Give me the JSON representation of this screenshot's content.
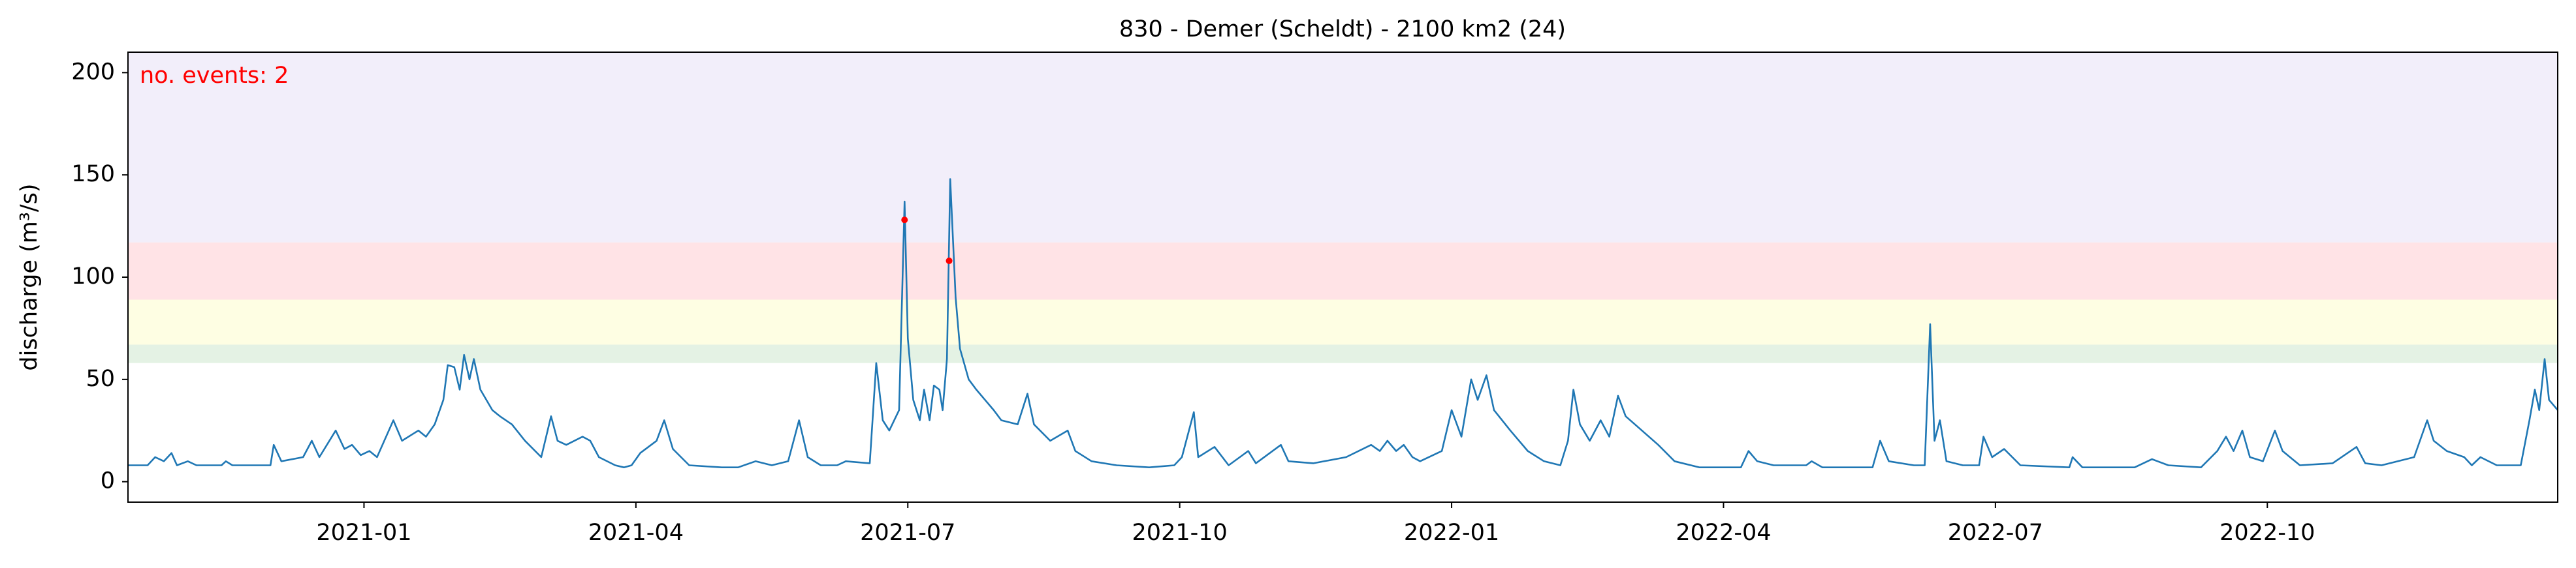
{
  "chart_data": {
    "type": "line",
    "title": "830 - Demer (Scheldt) - 2100 km2 (24)",
    "ylabel": "discharge (m³/s)",
    "annotation": "no. events: 2",
    "annotation_color": "#ff0000",
    "xlim": [
      2020.783,
      2023.017
    ],
    "ylim": [
      -10,
      210
    ],
    "xticks": [
      {
        "value": 2021.0,
        "label": "2021-01"
      },
      {
        "value": 2021.25,
        "label": "2021-04"
      },
      {
        "value": 2021.5,
        "label": "2021-07"
      },
      {
        "value": 2021.75,
        "label": "2021-10"
      },
      {
        "value": 2022.0,
        "label": "2022-01"
      },
      {
        "value": 2022.25,
        "label": "2022-04"
      },
      {
        "value": 2022.5,
        "label": "2022-07"
      },
      {
        "value": 2022.75,
        "label": "2022-10"
      }
    ],
    "yticks": [
      0,
      50,
      100,
      150,
      200
    ],
    "bands": [
      {
        "ymin": 58,
        "ymax": 67,
        "color": "#e4f2e4"
      },
      {
        "ymin": 67,
        "ymax": 89,
        "color": "#fefee3"
      },
      {
        "ymin": 89,
        "ymax": 117,
        "color": "#ffe3e6"
      },
      {
        "ymin": 117,
        "ymax": 210,
        "color": "#f2eefa"
      }
    ],
    "series": [
      {
        "color": "#1f77b4",
        "x": [
          2020.783,
          2020.801,
          2020.808,
          2020.816,
          2020.823,
          2020.828,
          2020.838,
          2020.846,
          2020.869,
          2020.873,
          2020.879,
          2020.914,
          2020.917,
          2020.924,
          2020.944,
          2020.952,
          2020.959,
          2020.974,
          2020.982,
          2020.989,
          2020.997,
          2021.005,
          2021.012,
          2021.027,
          2021.035,
          2021.05,
          2021.057,
          2021.065,
          2021.073,
          2021.077,
          2021.083,
          2021.088,
          2021.092,
          2021.097,
          2021.101,
          2021.107,
          2021.118,
          2021.125,
          2021.136,
          2021.148,
          2021.163,
          2021.172,
          2021.178,
          2021.186,
          2021.201,
          2021.208,
          2021.216,
          2021.231,
          2021.239,
          2021.246,
          2021.254,
          2021.269,
          2021.276,
          2021.284,
          2021.299,
          2021.329,
          2021.344,
          2021.36,
          2021.375,
          2021.39,
          2021.4,
          2021.408,
          2021.42,
          2021.435,
          2021.443,
          2021.465,
          2021.471,
          2021.477,
          2021.483,
          2021.492,
          2021.497,
          2021.5,
          2021.505,
          2021.511,
          2021.515,
          2021.52,
          2021.524,
          2021.529,
          2021.532,
          2021.536,
          2021.539,
          2021.544,
          2021.548,
          2021.556,
          2021.563,
          2021.571,
          2021.579,
          2021.586,
          2021.601,
          2021.61,
          2021.616,
          2021.631,
          2021.647,
          2021.654,
          2021.669,
          2021.692,
          2021.722,
          2021.745,
          2021.752,
          2021.763,
          2021.767,
          2021.782,
          2021.795,
          2021.813,
          2021.82,
          2021.843,
          2021.85,
          2021.873,
          2021.903,
          2021.926,
          2021.934,
          2021.941,
          2021.949,
          2021.956,
          2021.964,
          2021.971,
          2021.991,
          2022.0,
          2022.009,
          2022.018,
          2022.024,
          2022.032,
          2022.039,
          2022.054,
          2022.07,
          2022.085,
          2022.1,
          2022.107,
          2022.112,
          2022.118,
          2022.127,
          2022.137,
          2022.145,
          2022.153,
          2022.16,
          2022.175,
          2022.19,
          2022.205,
          2022.228,
          2022.266,
          2022.273,
          2022.281,
          2022.296,
          2022.326,
          2022.331,
          2022.341,
          2022.387,
          2022.394,
          2022.402,
          2022.425,
          2022.435,
          2022.44,
          2022.444,
          2022.449,
          2022.455,
          2022.47,
          2022.485,
          2022.489,
          2022.497,
          2022.508,
          2022.523,
          2022.568,
          2022.571,
          2022.58,
          2022.628,
          2022.644,
          2022.659,
          2022.689,
          2022.704,
          2022.712,
          2022.719,
          2022.727,
          2022.734,
          2022.746,
          2022.757,
          2022.764,
          2022.78,
          2022.81,
          2022.832,
          2022.84,
          2022.855,
          2022.87,
          2022.885,
          2022.897,
          2022.903,
          2022.915,
          2022.931,
          2022.938,
          2022.946,
          2022.961,
          2022.983,
          2022.991,
          2022.996,
          2023.0,
          2023.005,
          2023.009,
          2023.017
        ],
        "values": [
          8,
          8,
          12,
          10,
          14,
          8,
          10,
          8,
          8,
          10,
          8,
          8,
          18,
          10,
          12,
          20,
          12,
          25,
          16,
          18,
          13,
          15,
          12,
          30,
          20,
          25,
          22,
          28,
          40,
          57,
          56,
          45,
          62,
          50,
          60,
          45,
          35,
          32,
          28,
          20,
          12,
          32,
          20,
          18,
          22,
          20,
          12,
          8,
          7,
          8,
          14,
          20,
          30,
          16,
          8,
          7,
          7,
          10,
          8,
          10,
          30,
          12,
          8,
          8,
          10,
          9,
          58,
          30,
          25,
          35,
          137,
          70,
          40,
          30,
          45,
          30,
          47,
          45,
          35,
          60,
          148,
          90,
          65,
          50,
          45,
          40,
          35,
          30,
          28,
          43,
          28,
          20,
          25,
          15,
          10,
          8,
          7,
          8,
          12,
          34,
          12,
          17,
          8,
          15,
          9,
          18,
          10,
          9,
          12,
          18,
          15,
          20,
          15,
          18,
          12,
          10,
          15,
          35,
          22,
          50,
          40,
          52,
          35,
          25,
          15,
          10,
          8,
          20,
          45,
          28,
          20,
          30,
          22,
          42,
          32,
          25,
          18,
          10,
          7,
          7,
          15,
          10,
          8,
          8,
          10,
          7,
          7,
          20,
          10,
          8,
          8,
          77,
          20,
          30,
          10,
          8,
          8,
          22,
          12,
          16,
          8,
          7,
          12,
          7,
          7,
          11,
          8,
          7,
          15,
          22,
          15,
          25,
          12,
          10,
          25,
          15,
          8,
          9,
          17,
          9,
          8,
          10,
          12,
          30,
          20,
          15,
          12,
          8,
          12,
          8,
          8,
          30,
          45,
          35,
          60,
          40,
          35
        ]
      }
    ],
    "events": {
      "x": [
        2021.497,
        2021.538
      ],
      "values": [
        128,
        108
      ],
      "color": "#ff0000"
    }
  }
}
